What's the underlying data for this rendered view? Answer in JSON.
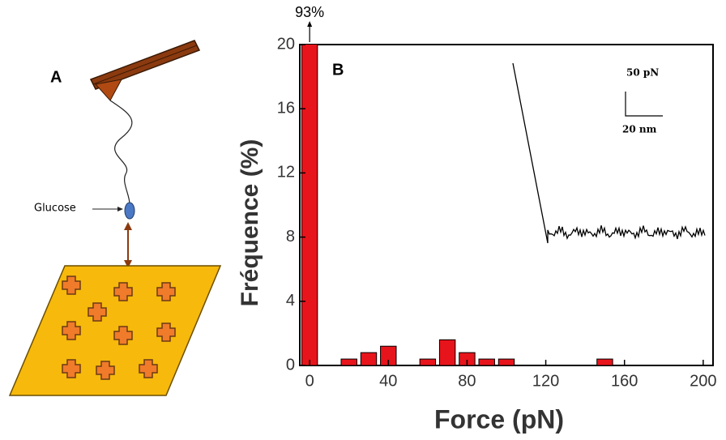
{
  "panel_a": {
    "label": "A",
    "glucose": "Glucose"
  },
  "chart_data": {
    "type": "bar",
    "panel_label": "B",
    "x_label": "Force (pN)",
    "y_label": "Fréquence (%)",
    "x": [
      0,
      20,
      30,
      40,
      60,
      70,
      80,
      90,
      100,
      150
    ],
    "values": [
      93,
      0.4,
      0.8,
      1.2,
      0.4,
      1.6,
      0.8,
      0.4,
      0.4,
      0.4
    ],
    "value_labels": [
      "93%",
      null,
      null,
      null,
      null,
      null,
      null,
      null,
      null,
      null
    ],
    "color": "#e8141b",
    "xlim": [
      -5,
      205
    ],
    "xticks": [
      0,
      40,
      80,
      120,
      160,
      200
    ],
    "ylim": [
      0,
      20
    ],
    "yticks": [
      0,
      4,
      8,
      12,
      16,
      20
    ],
    "inset": {
      "y_scale": "50 pN",
      "x_scale": "20 nm"
    }
  }
}
